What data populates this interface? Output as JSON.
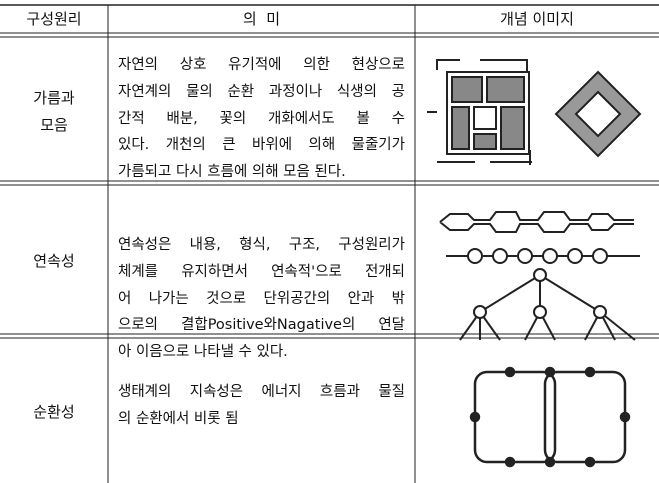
{
  "table": {
    "header": [
      "구성원리",
      "의  미",
      "개념 이미지"
    ],
    "rows": [
      {
        "name": [
          "가름과",
          "모음"
        ],
        "meaning": [
          "자연의 상호 유기적에 의한 현상으로",
          "자연계의 물의 순환 과정이나 식생의 공",
          "간적 배분, 꽃의 개화에서도 볼 수",
          "있다. 개천의 큰 바위에 의해 물줄기가",
          "가름되고 다시 흐름에 의해 모음 된다."
        ]
      },
      {
        "name": [
          "연속성"
        ],
        "meaning": [
          "연속성은 내용, 형식, 구조, 구성원리가",
          "체계를 유지하면서 연속적'으로 전개되",
          "어 나가는 것으로 단위공간의 안과 밖",
          "으로의 결합Positive와Nagative의 연달",
          "아 이음으로 나타낼 수 있다."
        ]
      },
      {
        "name": [
          "순환성"
        ],
        "meaning": [
          "생태계의 지속성은 에너지 흐름과 물질",
          "의 순환에서 비롯 됨"
        ]
      }
    ]
  }
}
